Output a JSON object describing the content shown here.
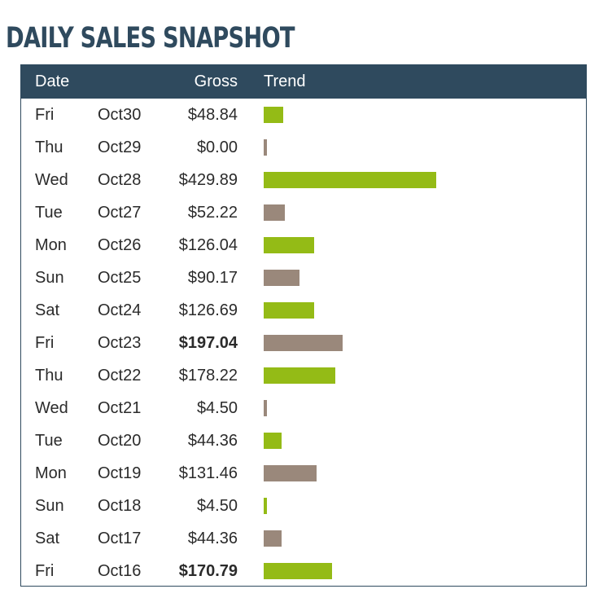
{
  "title": "DAILY SALES SNAPSHOT",
  "columns": {
    "date": "Date",
    "gross": "Gross",
    "trend": "Trend"
  },
  "colors": {
    "header_bg": "#2f4a5e",
    "bar_green": "#94bb16",
    "bar_taupe": "#9a887b"
  },
  "trend_max": 429.89,
  "rows": [
    {
      "day": "Fri",
      "date": "Oct30",
      "gross": "$48.84",
      "value": 48.84,
      "bold": false
    },
    {
      "day": "Thu",
      "date": "Oct29",
      "gross": "$0.00",
      "value": 0.0,
      "bold": false
    },
    {
      "day": "Wed",
      "date": "Oct28",
      "gross": "$429.89",
      "value": 429.89,
      "bold": false
    },
    {
      "day": "Tue",
      "date": "Oct27",
      "gross": "$52.22",
      "value": 52.22,
      "bold": false
    },
    {
      "day": "Mon",
      "date": "Oct26",
      "gross": "$126.04",
      "value": 126.04,
      "bold": false
    },
    {
      "day": "Sun",
      "date": "Oct25",
      "gross": "$90.17",
      "value": 90.17,
      "bold": false
    },
    {
      "day": "Sat",
      "date": "Oct24",
      "gross": "$126.69",
      "value": 126.69,
      "bold": false
    },
    {
      "day": "Fri",
      "date": "Oct23",
      "gross": "$197.04",
      "value": 197.04,
      "bold": true
    },
    {
      "day": "Thu",
      "date": "Oct22",
      "gross": "$178.22",
      "value": 178.22,
      "bold": false
    },
    {
      "day": "Wed",
      "date": "Oct21",
      "gross": "$4.50",
      "value": 4.5,
      "bold": false
    },
    {
      "day": "Tue",
      "date": "Oct20",
      "gross": "$44.36",
      "value": 44.36,
      "bold": false
    },
    {
      "day": "Mon",
      "date": "Oct19",
      "gross": "$131.46",
      "value": 131.46,
      "bold": false
    },
    {
      "day": "Sun",
      "date": "Oct18",
      "gross": "$4.50",
      "value": 4.5,
      "bold": false
    },
    {
      "day": "Sat",
      "date": "Oct17",
      "gross": "$44.36",
      "value": 44.36,
      "bold": false
    },
    {
      "day": "Fri",
      "date": "Oct16",
      "gross": "$170.79",
      "value": 170.79,
      "bold": true
    }
  ]
}
